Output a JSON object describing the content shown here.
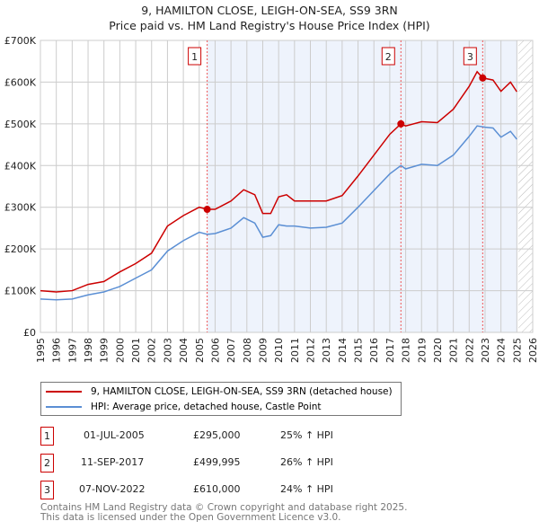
{
  "chart_data": {
    "type": "line",
    "title": "9, HAMILTON CLOSE, LEIGH-ON-SEA, SS9 3RN",
    "subtitle": "Price paid vs. HM Land Registry's House Price Index (HPI)",
    "xlim": [
      1995,
      2026
    ],
    "ylim": [
      0,
      700000
    ],
    "x_ticks": [
      "1995",
      "1996",
      "1997",
      "1998",
      "1999",
      "2000",
      "2001",
      "2002",
      "2003",
      "2004",
      "2005",
      "2006",
      "2007",
      "2008",
      "2009",
      "2010",
      "2011",
      "2012",
      "2013",
      "2014",
      "2015",
      "2016",
      "2017",
      "2018",
      "2019",
      "2020",
      "2021",
      "2022",
      "2023",
      "2024",
      "2025",
      "2026"
    ],
    "y_ticks": [
      {
        "v": 0,
        "label": "£0"
      },
      {
        "v": 100000,
        "label": "£100K"
      },
      {
        "v": 200000,
        "label": "£200K"
      },
      {
        "v": 300000,
        "label": "£300K"
      },
      {
        "v": 400000,
        "label": "£400K"
      },
      {
        "v": 500000,
        "label": "£500K"
      },
      {
        "v": 600000,
        "label": "£600K"
      },
      {
        "v": 700000,
        "label": "£700K"
      }
    ],
    "shaded_range": [
      2005.5,
      2025.0
    ],
    "hatched_from": 2025.1,
    "series": [
      {
        "name": "9, HAMILTON CLOSE, LEIGH-ON-SEA, SS9 3RN (detached house)",
        "color": "#cc0000",
        "x": [
          1995,
          1996,
          1997,
          1998,
          1999,
          2000,
          2001,
          2002,
          2003,
          2004,
          2005,
          2005.5,
          2006,
          2007,
          2007.8,
          2008.5,
          2009,
          2009.5,
          2010,
          2010.5,
          2011,
          2012,
          2013,
          2014,
          2015,
          2016,
          2017,
          2017.7,
          2018,
          2019,
          2020,
          2021,
          2022,
          2022.5,
          2022.85,
          2023.5,
          2024,
          2024.6,
          2025
        ],
        "y": [
          100000,
          97000,
          100000,
          115000,
          122000,
          145000,
          165000,
          190000,
          255000,
          280000,
          300000,
          295000,
          295000,
          315000,
          342000,
          330000,
          285000,
          285000,
          325000,
          330000,
          315000,
          315000,
          315000,
          328000,
          375000,
          425000,
          475000,
          500000,
          495000,
          505000,
          503000,
          535000,
          590000,
          625000,
          610000,
          605000,
          578000,
          600000,
          577000
        ]
      },
      {
        "name": "HPI: Average price, detached house, Castle Point",
        "color": "#5b8fd4",
        "x": [
          1995,
          1996,
          1997,
          1998,
          1999,
          2000,
          2001,
          2002,
          2003,
          2004,
          2005,
          2005.5,
          2006,
          2007,
          2007.8,
          2008.5,
          2009,
          2009.5,
          2010,
          2010.5,
          2011,
          2012,
          2013,
          2014,
          2015,
          2016,
          2017,
          2017.7,
          2018,
          2019,
          2020,
          2021,
          2022,
          2022.5,
          2023,
          2023.5,
          2024,
          2024.6,
          2025
        ],
        "y": [
          80000,
          78000,
          80000,
          90000,
          97000,
          110000,
          130000,
          150000,
          195000,
          220000,
          240000,
          235000,
          237000,
          250000,
          275000,
          262000,
          228000,
          232000,
          258000,
          255000,
          255000,
          250000,
          252000,
          262000,
          300000,
          340000,
          380000,
          400000,
          392000,
          403000,
          400000,
          425000,
          470000,
          495000,
          492000,
          490000,
          468000,
          482000,
          463000
        ]
      }
    ],
    "sales": [
      {
        "id": "1",
        "x": 2005.5,
        "y": 295000,
        "date": "01-JUL-2005",
        "price": "£295,000",
        "hpi": "25% ↑ HPI"
      },
      {
        "id": "2",
        "x": 2017.7,
        "y": 499995,
        "date": "11-SEP-2017",
        "price": "£499,995",
        "hpi": "26% ↑ HPI"
      },
      {
        "id": "3",
        "x": 2022.85,
        "y": 610000,
        "date": "07-NOV-2022",
        "price": "£610,000",
        "hpi": "24% ↑ HPI"
      }
    ]
  },
  "footer": {
    "line1": "Contains HM Land Registry data © Crown copyright and database right 2025.",
    "line2": "This data is licensed under the Open Government Licence v3.0."
  }
}
